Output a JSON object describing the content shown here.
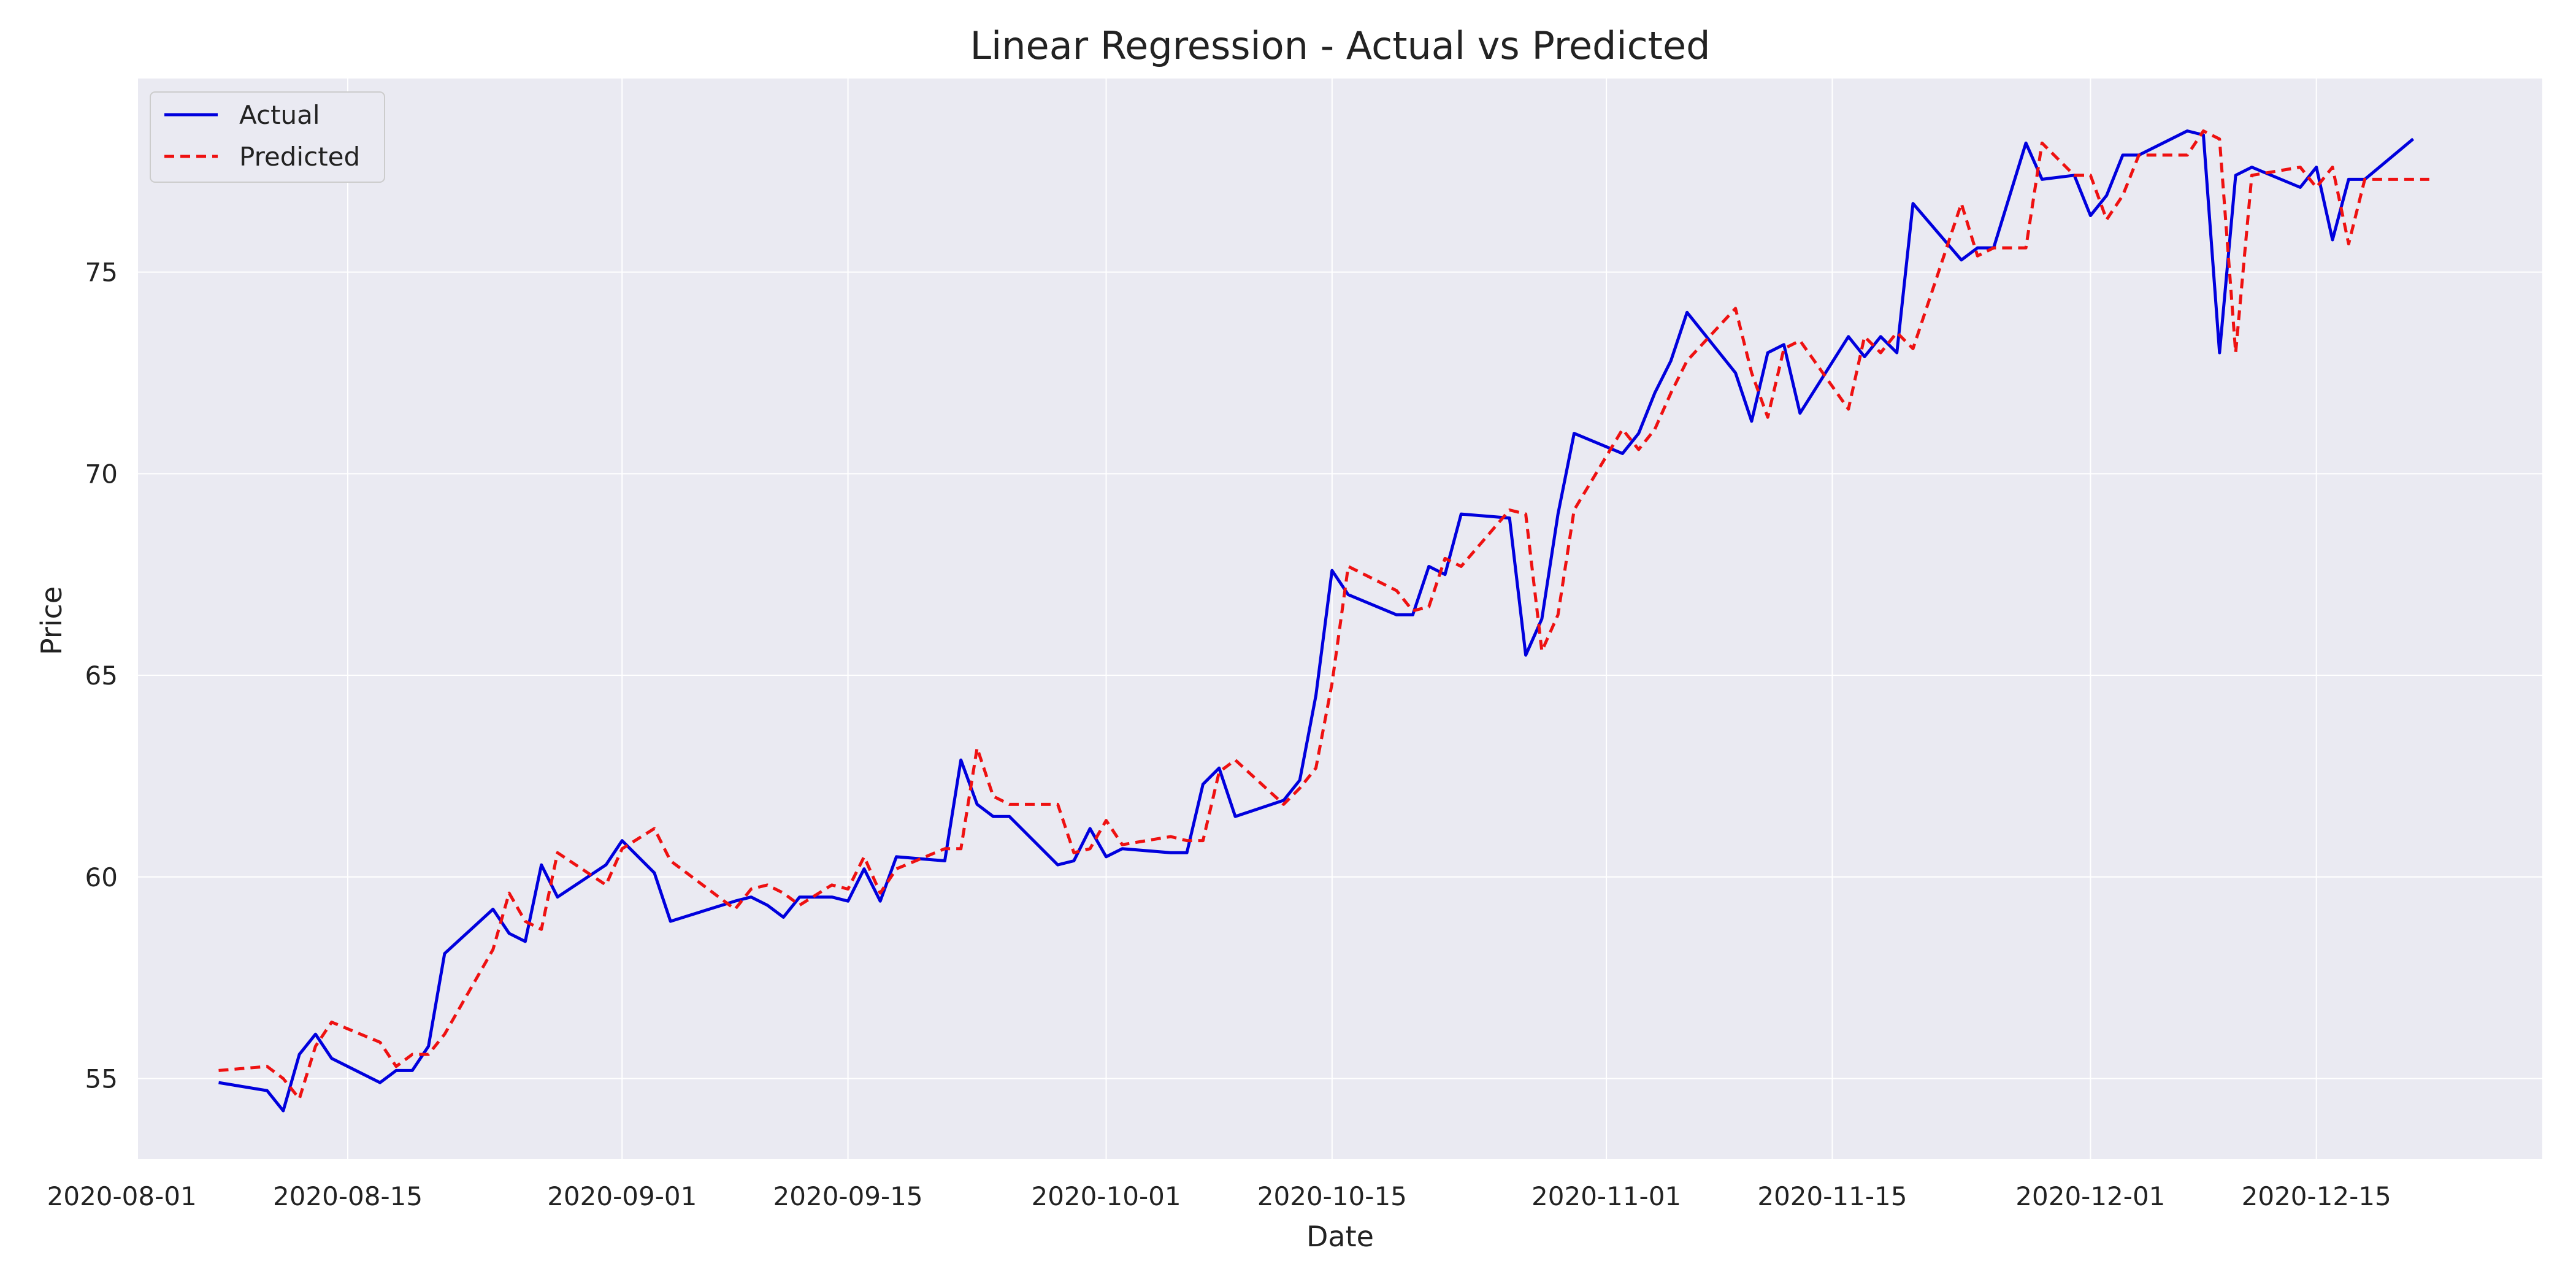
{
  "chart_data": {
    "type": "line",
    "title": "Linear Regression - Actual vs Predicted",
    "xlabel": "Date",
    "ylabel": "Price",
    "grid": true,
    "legend_position": "top-left",
    "xlim": [
      "2020-08-02",
      "2020-12-29"
    ],
    "ylim": [
      53,
      79.8
    ],
    "x_ticks": [
      "2020-08-01",
      "2020-08-15",
      "2020-09-01",
      "2020-09-15",
      "2020-10-01",
      "2020-10-15",
      "2020-11-01",
      "2020-11-15",
      "2020-12-01",
      "2020-12-15"
    ],
    "y_ticks": [
      55,
      60,
      65,
      70,
      75
    ],
    "colors": {
      "actual": "#0000dd",
      "predicted": "#ee1111"
    },
    "series": [
      {
        "name": "Actual",
        "style": "solid",
        "points": [
          [
            "2020-08-07",
            54.9
          ],
          [
            "2020-08-10",
            54.7
          ],
          [
            "2020-08-11",
            54.2
          ],
          [
            "2020-08-12",
            55.6
          ],
          [
            "2020-08-13",
            56.1
          ],
          [
            "2020-08-14",
            55.5
          ],
          [
            "2020-08-17",
            54.9
          ],
          [
            "2020-08-18",
            55.2
          ],
          [
            "2020-08-19",
            55.2
          ],
          [
            "2020-08-20",
            55.8
          ],
          [
            "2020-08-21",
            58.1
          ],
          [
            "2020-08-24",
            59.2
          ],
          [
            "2020-08-25",
            58.6
          ],
          [
            "2020-08-26",
            58.4
          ],
          [
            "2020-08-27",
            60.3
          ],
          [
            "2020-08-28",
            59.5
          ],
          [
            "2020-08-31",
            60.3
          ],
          [
            "2020-09-01",
            60.9
          ],
          [
            "2020-09-03",
            60.1
          ],
          [
            "2020-09-04",
            58.9
          ],
          [
            "2020-09-08",
            59.4
          ],
          [
            "2020-09-09",
            59.5
          ],
          [
            "2020-09-10",
            59.3
          ],
          [
            "2020-09-11",
            59.0
          ],
          [
            "2020-09-12",
            59.5
          ],
          [
            "2020-09-14",
            59.5
          ],
          [
            "2020-09-15",
            59.4
          ],
          [
            "2020-09-16",
            60.2
          ],
          [
            "2020-09-17",
            59.4
          ],
          [
            "2020-09-18",
            60.5
          ],
          [
            "2020-09-21",
            60.4
          ],
          [
            "2020-09-22",
            62.9
          ],
          [
            "2020-09-23",
            61.8
          ],
          [
            "2020-09-24",
            61.5
          ],
          [
            "2020-09-25",
            61.5
          ],
          [
            "2020-09-28",
            60.3
          ],
          [
            "2020-09-29",
            60.4
          ],
          [
            "2020-09-30",
            61.2
          ],
          [
            "2020-10-01",
            60.5
          ],
          [
            "2020-10-02",
            60.7
          ],
          [
            "2020-10-05",
            60.6
          ],
          [
            "2020-10-06",
            60.6
          ],
          [
            "2020-10-07",
            62.3
          ],
          [
            "2020-10-08",
            62.7
          ],
          [
            "2020-10-09",
            61.5
          ],
          [
            "2020-10-12",
            61.9
          ],
          [
            "2020-10-13",
            62.4
          ],
          [
            "2020-10-14",
            64.5
          ],
          [
            "2020-10-15",
            67.6
          ],
          [
            "2020-10-16",
            67.0
          ],
          [
            "2020-10-19",
            66.5
          ],
          [
            "2020-10-20",
            66.5
          ],
          [
            "2020-10-21",
            67.7
          ],
          [
            "2020-10-22",
            67.5
          ],
          [
            "2020-10-23",
            69.0
          ],
          [
            "2020-10-26",
            68.9
          ],
          [
            "2020-10-27",
            65.5
          ],
          [
            "2020-10-28",
            66.4
          ],
          [
            "2020-10-29",
            69.0
          ],
          [
            "2020-10-30",
            71.0
          ],
          [
            "2020-11-02",
            70.5
          ],
          [
            "2020-11-03",
            71.0
          ],
          [
            "2020-11-04",
            72.0
          ],
          [
            "2020-11-05",
            72.8
          ],
          [
            "2020-11-06",
            74.0
          ],
          [
            "2020-11-09",
            72.5
          ],
          [
            "2020-11-10",
            71.3
          ],
          [
            "2020-11-11",
            73.0
          ],
          [
            "2020-11-12",
            73.2
          ],
          [
            "2020-11-13",
            71.5
          ],
          [
            "2020-11-16",
            73.4
          ],
          [
            "2020-11-17",
            72.9
          ],
          [
            "2020-11-18",
            73.4
          ],
          [
            "2020-11-19",
            73.0
          ],
          [
            "2020-11-20",
            76.7
          ],
          [
            "2020-11-23",
            75.3
          ],
          [
            "2020-11-24",
            75.6
          ],
          [
            "2020-11-25",
            75.6
          ],
          [
            "2020-11-27",
            78.2
          ],
          [
            "2020-11-28",
            77.3
          ],
          [
            "2020-11-30",
            77.4
          ],
          [
            "2020-12-01",
            76.4
          ],
          [
            "2020-12-02",
            76.9
          ],
          [
            "2020-12-03",
            77.9
          ],
          [
            "2020-12-04",
            77.9
          ],
          [
            "2020-12-07",
            78.5
          ],
          [
            "2020-12-08",
            78.4
          ],
          [
            "2020-12-09",
            73.0
          ],
          [
            "2020-12-10",
            77.4
          ],
          [
            "2020-12-11",
            77.6
          ],
          [
            "2020-12-14",
            77.1
          ],
          [
            "2020-12-15",
            77.6
          ],
          [
            "2020-12-16",
            75.8
          ],
          [
            "2020-12-17",
            77.3
          ],
          [
            "2020-12-18",
            77.3
          ],
          [
            "2020-12-21",
            78.3
          ]
        ]
      },
      {
        "name": "Predicted",
        "style": "dashed",
        "points": [
          [
            "2020-08-07",
            55.2
          ],
          [
            "2020-08-10",
            55.3
          ],
          [
            "2020-08-11",
            55.0
          ],
          [
            "2020-08-12",
            54.5
          ],
          [
            "2020-08-13",
            55.8
          ],
          [
            "2020-08-14",
            56.4
          ],
          [
            "2020-08-17",
            55.9
          ],
          [
            "2020-08-18",
            55.3
          ],
          [
            "2020-08-19",
            55.6
          ],
          [
            "2020-08-20",
            55.6
          ],
          [
            "2020-08-21",
            56.1
          ],
          [
            "2020-08-24",
            58.2
          ],
          [
            "2020-08-25",
            59.6
          ],
          [
            "2020-08-26",
            58.9
          ],
          [
            "2020-08-27",
            58.7
          ],
          [
            "2020-08-28",
            60.6
          ],
          [
            "2020-08-31",
            59.8
          ],
          [
            "2020-09-01",
            60.7
          ],
          [
            "2020-09-03",
            61.2
          ],
          [
            "2020-09-04",
            60.4
          ],
          [
            "2020-09-08",
            59.2
          ],
          [
            "2020-09-09",
            59.7
          ],
          [
            "2020-09-10",
            59.8
          ],
          [
            "2020-09-11",
            59.6
          ],
          [
            "2020-09-12",
            59.3
          ],
          [
            "2020-09-14",
            59.8
          ],
          [
            "2020-09-15",
            59.7
          ],
          [
            "2020-09-16",
            60.5
          ],
          [
            "2020-09-17",
            59.6
          ],
          [
            "2020-09-18",
            60.2
          ],
          [
            "2020-09-21",
            60.7
          ],
          [
            "2020-09-22",
            60.7
          ],
          [
            "2020-09-23",
            63.2
          ],
          [
            "2020-09-24",
            62.0
          ],
          [
            "2020-09-25",
            61.8
          ],
          [
            "2020-09-28",
            61.8
          ],
          [
            "2020-09-29",
            60.6
          ],
          [
            "2020-09-30",
            60.7
          ],
          [
            "2020-10-01",
            61.4
          ],
          [
            "2020-10-02",
            60.8
          ],
          [
            "2020-10-05",
            61.0
          ],
          [
            "2020-10-06",
            60.9
          ],
          [
            "2020-10-07",
            60.9
          ],
          [
            "2020-10-08",
            62.6
          ],
          [
            "2020-10-09",
            62.9
          ],
          [
            "2020-10-12",
            61.8
          ],
          [
            "2020-10-13",
            62.2
          ],
          [
            "2020-10-14",
            62.7
          ],
          [
            "2020-10-15",
            64.8
          ],
          [
            "2020-10-16",
            67.7
          ],
          [
            "2020-10-19",
            67.1
          ],
          [
            "2020-10-20",
            66.6
          ],
          [
            "2020-10-21",
            66.7
          ],
          [
            "2020-10-22",
            67.9
          ],
          [
            "2020-10-23",
            67.7
          ],
          [
            "2020-10-26",
            69.1
          ],
          [
            "2020-10-27",
            69.0
          ],
          [
            "2020-10-28",
            65.6
          ],
          [
            "2020-10-29",
            66.5
          ],
          [
            "2020-10-30",
            69.1
          ],
          [
            "2020-11-02",
            71.1
          ],
          [
            "2020-11-03",
            70.6
          ],
          [
            "2020-11-04",
            71.1
          ],
          [
            "2020-11-05",
            72.0
          ],
          [
            "2020-11-06",
            72.8
          ],
          [
            "2020-11-09",
            74.1
          ],
          [
            "2020-11-10",
            72.5
          ],
          [
            "2020-11-11",
            71.4
          ],
          [
            "2020-11-12",
            73.1
          ],
          [
            "2020-11-13",
            73.3
          ],
          [
            "2020-11-16",
            71.6
          ],
          [
            "2020-11-17",
            73.4
          ],
          [
            "2020-11-18",
            73.0
          ],
          [
            "2020-11-19",
            73.5
          ],
          [
            "2020-11-20",
            73.1
          ],
          [
            "2020-11-23",
            76.7
          ],
          [
            "2020-11-24",
            75.4
          ],
          [
            "2020-11-25",
            75.6
          ],
          [
            "2020-11-27",
            75.6
          ],
          [
            "2020-11-28",
            78.2
          ],
          [
            "2020-11-30",
            77.4
          ],
          [
            "2020-12-01",
            77.4
          ],
          [
            "2020-12-02",
            76.3
          ],
          [
            "2020-12-03",
            76.9
          ],
          [
            "2020-12-04",
            77.9
          ],
          [
            "2020-12-07",
            77.9
          ],
          [
            "2020-12-08",
            78.5
          ],
          [
            "2020-12-09",
            78.3
          ],
          [
            "2020-12-10",
            73.0
          ],
          [
            "2020-12-11",
            77.4
          ],
          [
            "2020-12-14",
            77.6
          ],
          [
            "2020-12-15",
            77.1
          ],
          [
            "2020-12-16",
            77.6
          ],
          [
            "2020-12-17",
            75.7
          ],
          [
            "2020-12-18",
            77.3
          ],
          [
            "2020-12-21",
            77.3
          ],
          [
            "2020-12-22",
            77.3
          ]
        ]
      }
    ]
  }
}
